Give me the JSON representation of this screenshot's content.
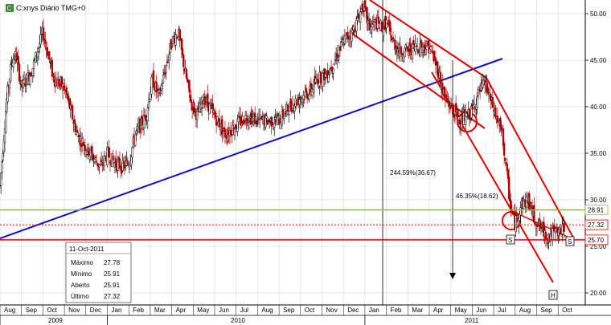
{
  "header": {
    "icon_label": "C",
    "title": "C:xnys Diário TMG+0"
  },
  "colors": {
    "up": "#000000",
    "down": "#b00000",
    "red_line": "#e00000",
    "blue_line": "#1010c0",
    "green_line": "#8fbf20",
    "grid": "#cfcfcf"
  },
  "chart_data": {
    "type": "candlestick",
    "ylim": [
      18.5,
      51.5
    ],
    "yticks": [
      "20.00",
      "25.00",
      "30.00",
      "35.00",
      "40.00",
      "45.00",
      "50.00"
    ],
    "months": [
      "Aug",
      "Sep",
      "Oct",
      "Nov",
      "Dec",
      "Jan",
      "Feb",
      "Mar",
      "Apr",
      "May",
      "Jun",
      "Jul",
      "Aug",
      "Sep",
      "Oct",
      "Nov",
      "Dec",
      "Jan",
      "Feb",
      "Mar",
      "Apr",
      "May",
      "Jun",
      "Jul",
      "Aug",
      "Sep",
      "Oct"
    ],
    "years": [
      "2009",
      "2010",
      "2011"
    ],
    "price_labels": [
      {
        "text": "28.91",
        "value": 28.91,
        "color": "#8fbf20"
      },
      {
        "text": "27.32",
        "value": 27.32,
        "color": "#e00000"
      },
      {
        "text": "25.70",
        "value": 25.7,
        "color": "#e00000"
      }
    ],
    "annotations": [
      "244.59%(36.67)",
      "46.35%(18.62)",
      "S",
      "S",
      "H"
    ],
    "info_box": {
      "date": "11-Oct-2011",
      "rows": [
        {
          "label": "Máximo",
          "value": "27.78"
        },
        {
          "label": "Mínimo",
          "value": "25.91"
        },
        {
          "label": "Aberto",
          "value": "25.91"
        },
        {
          "label": "Último",
          "value": "27.32"
        }
      ]
    },
    "series": [
      {
        "values": [
          [
            0,
            31.5
          ],
          [
            0.3,
            40.5
          ],
          [
            0.55,
            45
          ],
          [
            0.75,
            45.5
          ],
          [
            1,
            42
          ],
          [
            1.5,
            44
          ],
          [
            2,
            48
          ],
          [
            2.5,
            43
          ],
          [
            3,
            42
          ],
          [
            3.6,
            37
          ],
          [
            4.2,
            35
          ],
          [
            4.7,
            33.5
          ],
          [
            5,
            35
          ],
          [
            5.3,
            34
          ],
          [
            5.7,
            33.5
          ],
          [
            6,
            34
          ],
          [
            6.3,
            37
          ],
          [
            6.8,
            39
          ],
          [
            7.1,
            43
          ],
          [
            7.4,
            41
          ],
          [
            7.7,
            44
          ],
          [
            8,
            47
          ],
          [
            8.3,
            48
          ],
          [
            8.6,
            44
          ],
          [
            8.9,
            40.5
          ],
          [
            9.2,
            39
          ],
          [
            9.5,
            41
          ],
          [
            10,
            39
          ],
          [
            10.5,
            37
          ],
          [
            11,
            38
          ],
          [
            11.5,
            39
          ],
          [
            12,
            38.5
          ],
          [
            12.5,
            38.5
          ],
          [
            13,
            38.5
          ],
          [
            13.5,
            40
          ],
          [
            14,
            41
          ],
          [
            14.4,
            41.5
          ],
          [
            14.8,
            43
          ],
          [
            15.2,
            43.5
          ],
          [
            15.5,
            44.5
          ],
          [
            16,
            47
          ],
          [
            16.4,
            48
          ],
          [
            16.7,
            49.5
          ],
          [
            16.9,
            51
          ],
          [
            17.2,
            48.5
          ],
          [
            17.5,
            49
          ],
          [
            17.8,
            48.5
          ],
          [
            18,
            49
          ],
          [
            18.3,
            47
          ],
          [
            18.6,
            46
          ],
          [
            19,
            46
          ],
          [
            19.4,
            46.5
          ],
          [
            19.7,
            46.5
          ],
          [
            20,
            46.5
          ],
          [
            20.4,
            44
          ],
          [
            20.7,
            41
          ],
          [
            21,
            40
          ],
          [
            21.5,
            38.5
          ],
          [
            21.8,
            39
          ],
          [
            22,
            39.5
          ],
          [
            22.3,
            41.5
          ],
          [
            22.6,
            42.5
          ],
          [
            22.8,
            41
          ],
          [
            23.1,
            39
          ],
          [
            23.4,
            37
          ],
          [
            23.6,
            33
          ],
          [
            23.8,
            29
          ],
          [
            24,
            27.5
          ],
          [
            24.3,
            29.5
          ],
          [
            24.6,
            30
          ],
          [
            24.9,
            28
          ],
          [
            25.2,
            27
          ],
          [
            25.5,
            26
          ],
          [
            25.8,
            26.5
          ],
          [
            26.1,
            26.5
          ],
          [
            26.3,
            27.3
          ]
        ]
      }
    ]
  }
}
